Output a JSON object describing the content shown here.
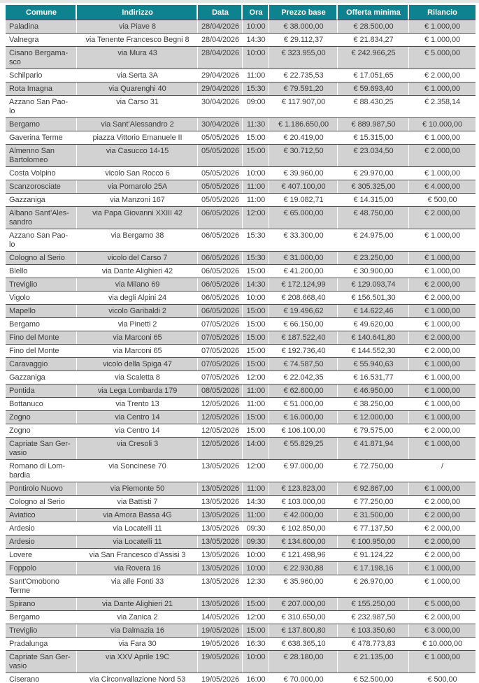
{
  "table": {
    "columns": [
      {
        "key": "comune",
        "label": "Comune"
      },
      {
        "key": "indirizzo",
        "label": "Indirizzo"
      },
      {
        "key": "data",
        "label": "Data"
      },
      {
        "key": "ora",
        "label": "Ora"
      },
      {
        "key": "prezzo-base",
        "label": "Prezzo base"
      },
      {
        "key": "offerta-minima",
        "label": "Offerta minima"
      },
      {
        "key": "rilancio",
        "label": "Rilancio"
      }
    ],
    "rows": [
      [
        "Paladina",
        "via Piave 8",
        "28/04/2026",
        "10:00",
        "€ 38.000,00",
        "€ 28.500,00",
        "€ 1.000,00"
      ],
      [
        "Valnegra",
        "via Tenente Francesco Begni 8",
        "28/04/2026",
        "14:30",
        "€ 29.112,37",
        "€ 21.834,27",
        "€ 1.000,00"
      ],
      [
        "Cisano Bergama-\nsco",
        "via Mura 43",
        "28/04/2026",
        "10:00",
        "€ 323.955,00",
        "€ 242.966,25",
        "€ 5.000,00"
      ],
      [
        "Schilpario",
        "via Serta 3A",
        "29/04/2026",
        "11:00",
        "€ 22.735,53",
        "€ 17.051,65",
        "€ 2.000,00"
      ],
      [
        "Rota Imagna",
        "via Quarenghi 40",
        "29/04/2026",
        "15:30",
        "€ 79.591,20",
        "€ 59.693,40",
        "€ 1.000,00"
      ],
      [
        "Azzano San Pao-\nlo",
        "via Carso 31",
        "30/04/2026",
        "09:00",
        "€ 117.907,00",
        "€ 88.430,25",
        "€ 2.358,14"
      ],
      [
        "Bergamo",
        "via Sant’Alessandro 2",
        "30/04/2026",
        "11:30",
        "€ 1.186.650,00",
        "€ 889.987,50",
        "€ 10.000,00"
      ],
      [
        "Gaverina Terme",
        "piazza Vittorio Emanuele II",
        "05/05/2026",
        "15:00",
        "€ 20.419,00",
        "€ 15.315,00",
        "€ 1.000,00"
      ],
      [
        "Almenno San\nBartolomeo",
        "via Casucco 14-15",
        "05/05/2026",
        "15:00",
        "€ 30.712,50",
        "€ 23.034,50",
        "€ 2.000,00"
      ],
      [
        "Costa Volpino",
        "vicolo San Rocco 6",
        "05/05/2026",
        "10:00",
        "€ 39.960,00",
        "€ 29.970,00",
        "€ 1.000,00"
      ],
      [
        "Scanzorosciate",
        "via Pomarolo 25A",
        "05/05/2026",
        "11:00",
        "€ 407.100,00",
        "€ 305.325,00",
        "€ 4.000,00"
      ],
      [
        "Gazzaniga",
        "via Manzoni 167",
        "05/05/2026",
        "11:00",
        "€ 19.082,71",
        "€ 14.315,00",
        "€ 500,00"
      ],
      [
        "Albano Sant’Ales-\nsandro",
        "via Papa Giovanni XXIII 42",
        "06/05/2026",
        "12:00",
        "€ 65.000,00",
        "€ 48.750,00",
        "€ 2.000,00"
      ],
      [
        "Azzano San Pao-\nlo",
        "via Bergamo 38",
        "06/05/2026",
        "15:30",
        "€ 33.300,00",
        "€ 24.975,00",
        "€ 1.000,00"
      ],
      [
        "Cologno al Serio",
        "vicolo del Carso 7",
        "06/05/2026",
        "15:30",
        "€ 31.000,00",
        "€ 23.250,00",
        "€ 1.000,00"
      ],
      [
        "Blello",
        "via Dante Alighieri 42",
        "06/05/2026",
        "15:00",
        "€ 41.200,00",
        "€ 30.900,00",
        "€ 1.000,00"
      ],
      [
        "Treviglio",
        "via Milano 69",
        "06/05/2026",
        "14:30",
        "€ 172.124,99",
        "€ 129.093,74",
        "€ 2.000,00"
      ],
      [
        "Vigolo",
        "via degli Alpini 24",
        "06/05/2026",
        "10:00",
        "€ 208.668,40",
        "€ 156.501,30",
        "€ 2.000,00"
      ],
      [
        "Mapello",
        "vicolo Garibaldi 2",
        "06/05/2026",
        "15:00",
        "€ 19.496,62",
        "€ 14.622,46",
        "€ 1.000,00"
      ],
      [
        "Bergamo",
        "via Pinetti 2",
        "07/05/2026",
        "15:00",
        "€ 66.150,00",
        "€ 49.620,00",
        "€ 1.000,00"
      ],
      [
        "Fino del Monte",
        "via Marconi 65",
        "07/05/2026",
        "15:00",
        "€ 187.522,40",
        "€ 140.641,80",
        "€ 2.000,00"
      ],
      [
        "Fino del Monte",
        "via Marconi 65",
        "07/05/2026",
        "15:00",
        "€ 192.736,40",
        "€ 144.552,30",
        "€ 2.000,00"
      ],
      [
        "Caravaggio",
        "vicolo della Spiga 47",
        "07/05/2026",
        "15:00",
        "€ 74.587,50",
        "€ 55.940,63",
        "€ 1.000,00"
      ],
      [
        "Gazzaniga",
        "via Scaletta 8",
        "07/05/2026",
        "12:00",
        "€ 22.042,35",
        "€ 16.531,77",
        "€ 1.000,00"
      ],
      [
        "Pontida",
        "via Lega Lombarda 179",
        "08/05/2026",
        "11:00",
        "€ 62.600,00",
        "€ 46.950,00",
        "€ 1.000,00"
      ],
      [
        "Bottanuco",
        "via Trento 13",
        "12/05/2026",
        "11:00",
        "€ 51.000,00",
        "€ 38.250,00",
        "€ 1.000,00"
      ],
      [
        "Zogno",
        "via Centro 14",
        "12/05/2026",
        "15:00",
        "€ 16.000,00",
        "€ 12.000,00",
        "€ 1.000,00"
      ],
      [
        "Zogno",
        "via Centro 14",
        "12/05/2026",
        "15:00",
        "€ 106.100,00",
        "€ 79.575,00",
        "€ 2.000,00"
      ],
      [
        "Capriate San Ger-\nvasio",
        "via Cresoli 3",
        "12/05/2026",
        "14:00",
        "€ 55.829,25",
        "€ 41.871,94",
        "€ 1.000,00"
      ],
      [
        "Romano di Lom-\nbardia",
        "via Soncinese 70",
        "13/05/2026",
        "12:00",
        "€ 97.000,00",
        "€ 72.750,00",
        "/"
      ],
      [
        "Pontirolo Nuovo",
        "via Piemonte 50",
        "13/05/2026",
        "11:00",
        "€ 123.823,00",
        "€ 92.867,00",
        "€ 1.000,00"
      ],
      [
        "Cologno al Serio",
        "via Battisti 7",
        "13/05/2026",
        "14:30",
        "€ 103.000,00",
        "€ 77.250,00",
        "€ 2.000,00"
      ],
      [
        "Aviatico",
        "via Amora Bassa 4G",
        "13/05/2026",
        "11:00",
        "€ 42.000,00",
        "€ 31.500,00",
        "€ 2.000,00"
      ],
      [
        "Ardesio",
        "via Locatelli 11",
        "13/05/2026",
        "09:30",
        "€ 102.850,00",
        "€ 77.137,50",
        "€ 2.000,00"
      ],
      [
        "Ardesio",
        "via Locatelli 11",
        "13/05/2026",
        "09:30",
        "€ 134.600,00",
        "€ 100.950,00",
        "€ 2.000,00"
      ],
      [
        "Lovere",
        "via San Francesco d’Assisi 3",
        "13/05/2026",
        "10:00",
        "€ 121.498,96",
        "€ 91.124,22",
        "€ 2.000,00"
      ],
      [
        "Foppolo",
        "via Rovera 16",
        "13/05/2026",
        "10:00",
        "€ 22.930,88",
        "€ 17.198,16",
        "€ 1.000,00"
      ],
      [
        "Sant'Omobono\nTerme",
        "via alle Fonti 33",
        "13/05/2026",
        "12:30",
        "€ 35.960,00",
        "€ 26.970,00",
        "€ 1.000,00"
      ],
      [
        "Spirano",
        "via Dante Alighieri 21",
        "13/05/2026",
        "15:00",
        "€ 207.000,00",
        "€ 155.250,00",
        "€ 5.000,00"
      ],
      [
        "Bergamo",
        "via Zanica 2",
        "14/05/2026",
        "12:00",
        "€ 310.650,00",
        "€ 232.987,50",
        "€ 2.000,00"
      ],
      [
        "Treviglio",
        "via Dalmazia 16",
        "19/05/2026",
        "15:00",
        "€ 137.800,80",
        "€ 103.350,60",
        "€ 3.000,00"
      ],
      [
        "Pradalunga",
        "via Fara 30",
        "19/05/2026",
        "16:30",
        "€ 638.365,10",
        "€ 478.773,83",
        "€ 10.000,00"
      ],
      [
        "Capriate San Ger-\nvasio",
        "via XXV Aprile 19C",
        "19/05/2026",
        "10:00",
        "€ 28.180,00",
        "€ 21.135,00",
        "€ 1.000,00"
      ],
      [
        "Ciserano",
        "via Circonvallazione Nord 53",
        "19/05/2026",
        "16:00",
        "€ 70.000,00",
        "€ 52.500,00",
        "€ 500,00"
      ]
    ]
  },
  "colors": {
    "header_bg": "#0e828e",
    "header_text": "#ffffff",
    "row_alt_bg": "#d2d2d2",
    "row_bg": "#ffffff",
    "row_border": "#4e4e4e",
    "body_text": "#3c3c3c",
    "top_strip": "#e4e4e4"
  }
}
